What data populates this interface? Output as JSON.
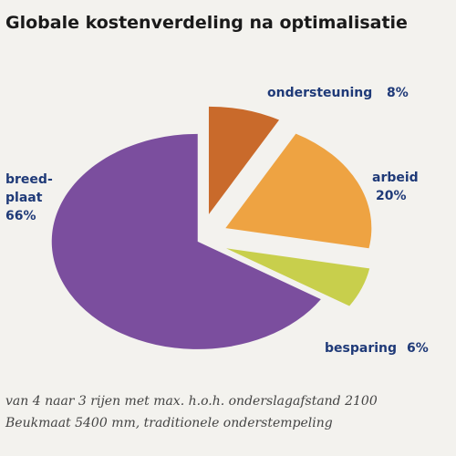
{
  "chart_data": {
    "type": "pie",
    "title": "Globale kostenverdeling na optimalisatie",
    "categories": [
      "ondersteuning",
      "arbeid",
      "besparing",
      "breed-\nplaat"
    ],
    "values": [
      8,
      20,
      6,
      66
    ],
    "value_labels": [
      "8%",
      "20%",
      "6%",
      "66%"
    ],
    "colors": [
      "#c96a2b",
      "#eea342",
      "#c8cf4c",
      "#7b4e9e"
    ],
    "footnote": [
      "van 4 naar 3 rijen met max. h.o.h. onderslagafstand 2100",
      "Beukmaat 5400 mm, traditionele onderstempeling"
    ]
  }
}
